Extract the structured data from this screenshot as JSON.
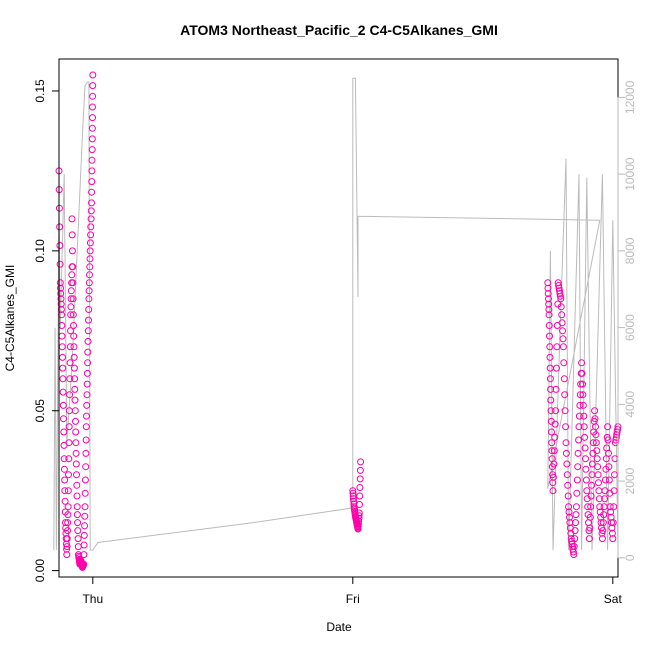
{
  "chart_data": {
    "type": "scatter",
    "title": "ATOM3 Northeast_Pacific_2 C4-C5Alkanes_GMI",
    "xlabel": "Date",
    "ylabel": "C4-C5Alkanes_GMI",
    "x_ticks": [
      "Thu",
      "Fri",
      "Sat"
    ],
    "y_left_ticks": [
      "0.00",
      "0.05",
      "0.10",
      "0.15"
    ],
    "y_left_lim": [
      -0.002,
      0.16
    ],
    "y_right_ticks": [
      "0",
      "2000",
      "4000",
      "6000",
      "8000",
      "10000",
      "12000"
    ],
    "y_right_lim": [
      -500,
      13000
    ],
    "x_lim": [
      -0.13,
      2.02
    ],
    "colors": {
      "points": "#ff00aa",
      "line": "#bbbbbb",
      "axis": "#000000",
      "axis_right": "#bbbbbb"
    },
    "series": [
      {
        "axis": "left",
        "style": "open-circle",
        "segments": [
          {
            "x0": -0.17,
            "x1": -0.08,
            "points": [
              [
                -0.17,
                0.095
              ],
              [
                -0.165,
                0.12
              ],
              [
                -0.16,
                0.11
              ],
              [
                -0.155,
                0.13
              ],
              [
                -0.15,
                0.09
              ],
              [
                -0.145,
                0.075
              ],
              [
                -0.14,
                0.085
              ],
              [
                -0.135,
                0.1
              ],
              [
                -0.13,
                0.125
              ],
              [
                -0.125,
                0.09
              ],
              [
                -0.12,
                0.08
              ],
              [
                -0.115,
                0.06
              ],
              [
                -0.11,
                0.035
              ],
              [
                -0.105,
                0.015
              ],
              [
                -0.1,
                0.005
              ],
              [
                -0.095,
                0.02
              ],
              [
                -0.09,
                0.05
              ],
              [
                -0.085,
                0.08
              ],
              [
                -0.08,
                0.095
              ]
            ]
          },
          {
            "x0": -0.08,
            "x1": 0.0,
            "points": [
              [
                -0.08,
                0.11
              ],
              [
                -0.075,
                0.08
              ],
              [
                -0.07,
                0.06
              ],
              [
                -0.065,
                0.04
              ],
              [
                -0.06,
                0.02
              ],
              [
                -0.055,
                0.005
              ],
              [
                -0.05,
                0.002
              ],
              [
                -0.045,
                0.003
              ],
              [
                -0.04,
                0.001
              ],
              [
                -0.035,
                0.002
              ],
              [
                -0.03,
                0.02
              ],
              [
                -0.025,
                0.045
              ],
              [
                -0.02,
                0.065
              ],
              [
                -0.015,
                0.085
              ],
              [
                -0.01,
                0.1
              ],
              [
                -0.005,
                0.115
              ],
              [
                -0.002,
                0.135
              ],
              [
                0.0,
                0.155
              ]
            ]
          },
          {
            "x0": 1.0,
            "x1": 1.03,
            "points": [
              [
                1.0,
                0.025
              ],
              [
                1.005,
                0.02
              ],
              [
                1.01,
                0.017
              ],
              [
                1.015,
                0.015
              ],
              [
                1.02,
                0.013
              ],
              [
                1.025,
                0.018
              ],
              [
                1.03,
                0.034
              ]
            ]
          },
          {
            "x0": 1.75,
            "x1": 2.02,
            "points": [
              [
                1.75,
                0.09
              ],
              [
                1.755,
                0.08
              ],
              [
                1.76,
                0.06
              ],
              [
                1.765,
                0.04
              ],
              [
                1.77,
                0.025
              ],
              [
                1.78,
                0.05
              ],
              [
                1.79,
                0.09
              ],
              [
                1.8,
                0.085
              ],
              [
                1.81,
                0.07
              ],
              [
                1.82,
                0.04
              ],
              [
                1.83,
                0.02
              ],
              [
                1.84,
                0.01
              ],
              [
                1.85,
                0.005
              ],
              [
                1.86,
                0.02
              ],
              [
                1.87,
                0.045
              ],
              [
                1.88,
                0.065
              ],
              [
                1.89,
                0.045
              ],
              [
                1.9,
                0.025
              ],
              [
                1.91,
                0.01
              ],
              [
                1.92,
                0.03
              ],
              [
                1.93,
                0.05
              ],
              [
                1.94,
                0.035
              ],
              [
                1.95,
                0.02
              ],
              [
                1.96,
                0.01
              ],
              [
                1.97,
                0.025
              ],
              [
                1.98,
                0.045
              ],
              [
                1.99,
                0.02
              ],
              [
                2.0,
                0.01
              ],
              [
                2.01,
                0.04
              ],
              [
                2.02,
                0.045
              ]
            ]
          }
        ]
      },
      {
        "axis": "right",
        "style": "line",
        "points": [
          [
            -0.15,
            200
          ],
          [
            -0.145,
            6000
          ],
          [
            -0.14,
            200
          ],
          [
            -0.13,
            9000
          ],
          [
            -0.125,
            6000
          ],
          [
            -0.11,
            10000
          ],
          [
            -0.1,
            3000
          ],
          [
            -0.08,
            5000
          ],
          [
            -0.06,
            8000
          ],
          [
            -0.04,
            11000
          ],
          [
            -0.03,
            12300
          ],
          [
            -0.02,
            12400
          ],
          [
            -0.015,
            12400
          ],
          [
            -0.01,
            200
          ],
          [
            0.0,
            200
          ],
          [
            0.02,
            400
          ],
          [
            0.6,
            900
          ],
          [
            1.0,
            1300
          ],
          [
            1.0,
            12500
          ],
          [
            1.01,
            12500
          ],
          [
            1.02,
            6800
          ],
          [
            1.02,
            8900
          ],
          [
            1.5,
            8850
          ],
          [
            1.95,
            8800
          ],
          [
            1.75,
            1800
          ],
          [
            1.76,
            8000
          ],
          [
            1.77,
            200
          ],
          [
            1.8,
            6500
          ],
          [
            1.82,
            10400
          ],
          [
            1.83,
            200
          ],
          [
            1.87,
            10000
          ],
          [
            1.88,
            200
          ],
          [
            1.9,
            9900
          ],
          [
            1.92,
            200
          ],
          [
            1.96,
            10000
          ],
          [
            1.98,
            200
          ],
          [
            2.0,
            8800
          ],
          [
            2.02,
            200
          ]
        ]
      }
    ]
  }
}
